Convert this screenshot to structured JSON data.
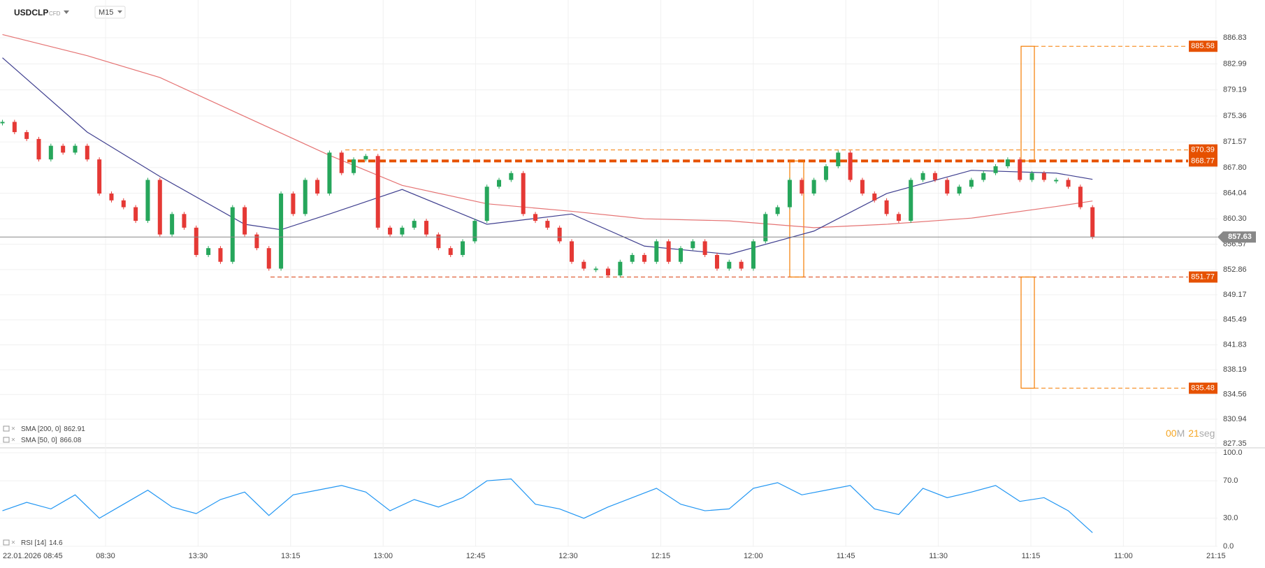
{
  "header": {
    "symbol": "USDCLP",
    "badge": "CFD",
    "timeframe": "M15"
  },
  "chart_data": [
    {
      "type": "candlestick",
      "up_color": "#26a65b",
      "down_color": "#e53935",
      "close": [
        874.5,
        873,
        872,
        869,
        871,
        870,
        871,
        869,
        864,
        863,
        862,
        860,
        866,
        858,
        861,
        859,
        855,
        856,
        854,
        862,
        858,
        856,
        853,
        864,
        861,
        866,
        864,
        870,
        867,
        869,
        869.5,
        859,
        858,
        859,
        860,
        858,
        856,
        855,
        857,
        860,
        865,
        866,
        867,
        861,
        860,
        859,
        857,
        854,
        853,
        853,
        852,
        854,
        855,
        854,
        857,
        854,
        856,
        857,
        855,
        853,
        854,
        853,
        857,
        861,
        862,
        866,
        864,
        866,
        868,
        870,
        866,
        864,
        863,
        861,
        860,
        866,
        867,
        866,
        864,
        865,
        866,
        867,
        868,
        869,
        866,
        867,
        866,
        866,
        865,
        862,
        857.63
      ],
      "ylim": [
        826.74,
        892.36
      ],
      "yticks": [
        {
          "value": 886.83,
          "label": "886.83"
        },
        {
          "value": 882.99,
          "label": "882.99"
        },
        {
          "value": 879.19,
          "label": "879.19"
        },
        {
          "value": 875.36,
          "label": "875.36"
        },
        {
          "value": 871.57,
          "label": "871.57"
        },
        {
          "value": 867.8,
          "label": "867.80"
        },
        {
          "value": 864.04,
          "label": "864.04"
        },
        {
          "value": 860.3,
          "label": "860.30"
        },
        {
          "value": 856.57,
          "label": "856.57"
        },
        {
          "value": 852.86,
          "label": "852.86"
        },
        {
          "value": 849.17,
          "label": "849.17"
        },
        {
          "value": 845.49,
          "label": "845.49"
        },
        {
          "value": 841.83,
          "label": "841.83"
        },
        {
          "value": 838.19,
          "label": "838.19"
        },
        {
          "value": 834.56,
          "label": "834.56"
        },
        {
          "value": 830.94,
          "label": "830.94"
        },
        {
          "value": 827.35,
          "label": "827.35"
        }
      ],
      "x_labels": [
        "22.01.2026  08:45",
        "08:30",
        "13:30",
        "13:15",
        "13:00",
        "12:45",
        "12:30",
        "12:15",
        "12:00",
        "11:45",
        "11:30",
        "11:15",
        "11:00",
        "21:15"
      ],
      "last_price": 857.63,
      "levels": [
        885.58,
        870.39,
        868.77,
        851.77,
        835.48
      ],
      "indicators": [
        {
          "name": "SMA [200, 0]",
          "color": "#e57373",
          "last": 862.91,
          "x": [
            0,
            7,
            13,
            20,
            27,
            33,
            40,
            47,
            53,
            60,
            67,
            73,
            80,
            87,
            90
          ],
          "values": [
            887.3,
            884.2,
            881,
            875.3,
            869.6,
            865.2,
            862.5,
            861.4,
            860.3,
            860,
            859,
            859.5,
            860.4,
            862.1,
            862.91
          ]
        },
        {
          "name": "SMA [50, 0]",
          "color": "#3f3f8f",
          "last": 866.08,
          "x": [
            0,
            7,
            13,
            20,
            23,
            27,
            33,
            40,
            47,
            53,
            60,
            67,
            73,
            80,
            87,
            90
          ],
          "values": [
            883.9,
            873,
            866.5,
            859.5,
            858.7,
            861,
            864.6,
            859.5,
            861,
            856.3,
            855.1,
            858.5,
            864,
            867.4,
            867,
            866.08
          ]
        }
      ],
      "countdown": {
        "minutes": "00",
        "m_unit": "M",
        "seconds": "21",
        "s_unit": "seg"
      }
    },
    {
      "type": "line",
      "series": [
        {
          "name": "RSI [14]",
          "color": "#2196f3",
          "last": 14.6,
          "x": [
            0,
            2,
            4,
            6,
            8,
            10,
            12,
            14,
            16,
            18,
            20,
            22,
            24,
            26,
            28,
            30,
            32,
            34,
            36,
            38,
            40,
            42,
            44,
            46,
            48,
            50,
            52,
            54,
            56,
            58,
            60,
            62,
            64,
            66,
            68,
            70,
            72,
            74,
            76,
            78,
            80,
            82,
            84,
            86,
            88,
            90
          ],
          "values": [
            38,
            47,
            40,
            55,
            30,
            45,
            60,
            42,
            35,
            50,
            58,
            33,
            55,
            60,
            65,
            58,
            38,
            50,
            42,
            52,
            70,
            72,
            45,
            40,
            30,
            42,
            52,
            62,
            45,
            38,
            40,
            62,
            68,
            55,
            60,
            65,
            40,
            34,
            62,
            52,
            58,
            65,
            48,
            52,
            38,
            14.6
          ]
        }
      ],
      "ylim": [
        0,
        100
      ],
      "yticks": [
        {
          "value": 100,
          "label": "100.0"
        },
        {
          "value": 70,
          "label": "70.0"
        },
        {
          "value": 30,
          "label": "30.0"
        },
        {
          "value": 0,
          "label": "0.0"
        }
      ]
    }
  ]
}
